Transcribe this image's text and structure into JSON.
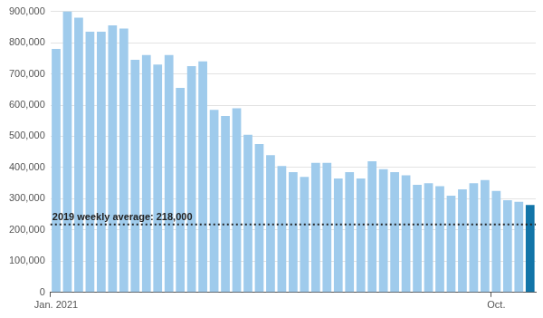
{
  "chart_data": {
    "type": "bar",
    "categories": [
      "Jan. 2021",
      null,
      null,
      null,
      null,
      null,
      null,
      null,
      null,
      null,
      null,
      null,
      null,
      null,
      null,
      null,
      null,
      null,
      null,
      null,
      null,
      null,
      null,
      null,
      null,
      null,
      null,
      null,
      null,
      null,
      null,
      null,
      null,
      null,
      null,
      null,
      null,
      null,
      null,
      "Oct.",
      null,
      null,
      null
    ],
    "values": [
      780000,
      900000,
      880000,
      835000,
      835000,
      855000,
      845000,
      745000,
      760000,
      730000,
      760000,
      655000,
      725000,
      740000,
      585000,
      565000,
      590000,
      505000,
      475000,
      440000,
      405000,
      385000,
      370000,
      415000,
      415000,
      365000,
      385000,
      365000,
      420000,
      395000,
      385000,
      375000,
      345000,
      350000,
      340000,
      310000,
      330000,
      350000,
      360000,
      325000,
      295000,
      290000,
      280000
    ],
    "colors": [
      "#9fcbec",
      "#9fcbec",
      "#9fcbec",
      "#9fcbec",
      "#9fcbec",
      "#9fcbec",
      "#9fcbec",
      "#9fcbec",
      "#9fcbec",
      "#9fcbec",
      "#9fcbec",
      "#9fcbec",
      "#9fcbec",
      "#9fcbec",
      "#9fcbec",
      "#9fcbec",
      "#9fcbec",
      "#9fcbec",
      "#9fcbec",
      "#9fcbec",
      "#9fcbec",
      "#9fcbec",
      "#9fcbec",
      "#9fcbec",
      "#9fcbec",
      "#9fcbec",
      "#9fcbec",
      "#9fcbec",
      "#9fcbec",
      "#9fcbec",
      "#9fcbec",
      "#9fcbec",
      "#9fcbec",
      "#9fcbec",
      "#9fcbec",
      "#9fcbec",
      "#9fcbec",
      "#9fcbec",
      "#9fcbec",
      "#9fcbec",
      "#9fcbec",
      "#9fcbec",
      "#1275a8"
    ],
    "ylim": [
      0,
      900000
    ],
    "yticks": [
      0,
      {
        "value": 100000,
        "label": "100,000"
      },
      {
        "value": 200000,
        "label": "200,000"
      },
      {
        "value": 300000,
        "label": "300,000"
      },
      {
        "value": 400000,
        "label": "400,000"
      },
      {
        "value": 500000,
        "label": "500,000"
      },
      {
        "value": 600000,
        "label": "600,000"
      },
      {
        "value": 700000,
        "label": "700,000"
      },
      {
        "value": 800000,
        "label": "800,000"
      },
      {
        "value": 900000,
        "label": "900,000"
      }
    ],
    "grid": true,
    "annotations": [
      {
        "text": "2019 weekly average: 218,000",
        "y": 218000
      }
    ]
  }
}
